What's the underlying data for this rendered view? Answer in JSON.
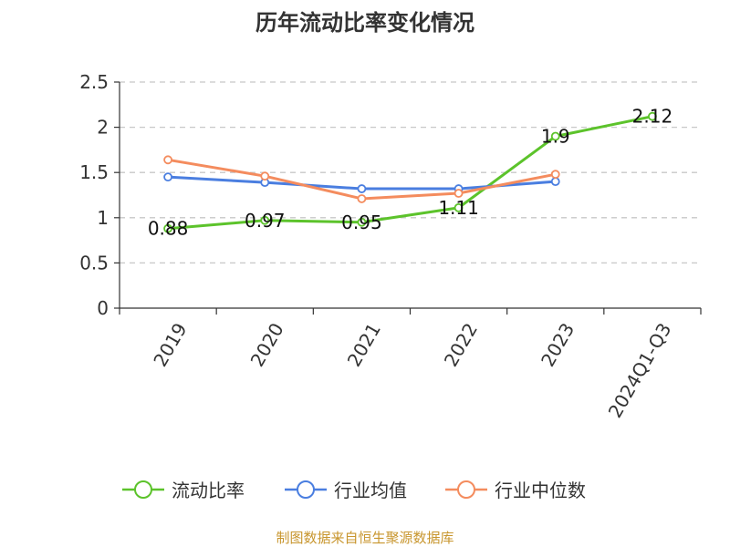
{
  "chart_data": {
    "type": "line",
    "title": "历年流动比率变化情况",
    "categories": [
      "2019",
      "2020",
      "2021",
      "2022",
      "2023",
      "2024Q1-Q3"
    ],
    "ylim": [
      0,
      2.5
    ],
    "yticks": [
      "0",
      "0.5",
      "1",
      "1.5",
      "2",
      "2.5"
    ],
    "ytick_values": [
      0,
      0.5,
      1,
      1.5,
      2,
      2.5
    ],
    "grid": "horizontal-dashed",
    "legend_position": "bottom",
    "series": [
      {
        "name": "流动比率",
        "color": "#5cc32b",
        "values": [
          0.88,
          0.97,
          0.95,
          1.11,
          1.9,
          2.12
        ],
        "labels": [
          "0.88",
          "0.97",
          "0.95",
          "1.11",
          "1.9",
          "2.12"
        ]
      },
      {
        "name": "行业均值",
        "color": "#4a7ee0",
        "values": [
          1.45,
          1.39,
          1.32,
          1.32,
          1.4,
          null
        ]
      },
      {
        "name": "行业中位数",
        "color": "#f48c5e",
        "values": [
          1.64,
          1.46,
          1.21,
          1.27,
          1.48,
          null
        ]
      }
    ],
    "source": "制图数据来自恒生聚源数据库",
    "source_color": "#c8962e"
  }
}
